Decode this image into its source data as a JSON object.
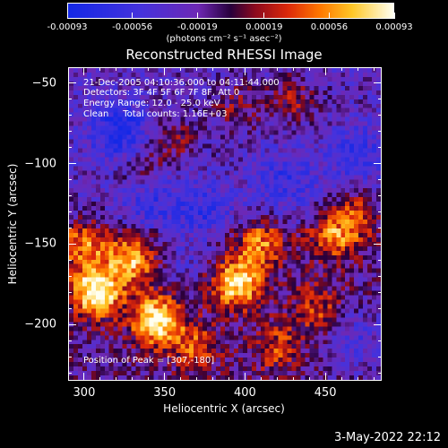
{
  "chart_data": {
    "type": "heatmap",
    "title": "Reconstructed RHESSI Image",
    "xlabel": "Heliocentric X (arcsec)",
    "ylabel": "Heliocentric Y (arcsec)",
    "xlim": [
      290,
      485
    ],
    "ylim": [
      -235,
      -40
    ],
    "xticks": [
      "300",
      "350",
      "400",
      "450"
    ],
    "xtick_values": [
      300,
      350,
      400,
      450
    ],
    "yticks": [
      "-50",
      "-100",
      "-150",
      "-200"
    ],
    "ytick_values": [
      -50,
      -100,
      -150,
      -200
    ],
    "colorbar": {
      "ticks": [
        "-0.00093",
        "-0.00056",
        "-0.00019",
        "0.00019",
        "0.00056",
        "0.00093"
      ],
      "tick_values": [
        -0.00093,
        -0.00056,
        -0.00019,
        0.00019,
        0.00056,
        0.00093
      ],
      "range": [
        -0.00093,
        0.00093
      ],
      "units": "(photons cm⁻² s⁻¹ asec⁻²)"
    },
    "annotations": {
      "time_range": "21-Dec-2005 04:10:36.000 to 04:11:44.000",
      "detectors": "Detectors: 3F 4F 5F 6F 7F 8F, Att 0",
      "energy": "Energy Range: 12.0 - 25.0 keV",
      "clean": "Clean     Total counts: 1.16E+03",
      "peak": "Position of Peak = [307,-180]"
    },
    "peak_position": [
      307,
      -180
    ],
    "total_counts": 1160,
    "energy_range_kev": [
      12.0,
      25.0
    ],
    "bright_regions": [
      {
        "x": 307,
        "y": -180,
        "level": 1.0
      },
      {
        "x": 345,
        "y": -198,
        "level": 0.95
      },
      {
        "x": 395,
        "y": -175,
        "level": 0.85
      },
      {
        "x": 330,
        "y": -160,
        "level": 0.7
      },
      {
        "x": 410,
        "y": -150,
        "level": 0.55
      },
      {
        "x": 300,
        "y": -150,
        "level": 0.55
      },
      {
        "x": 455,
        "y": -145,
        "level": 0.55
      },
      {
        "x": 470,
        "y": -130,
        "level": 0.45
      },
      {
        "x": 445,
        "y": -190,
        "level": 0.4
      },
      {
        "x": 420,
        "y": -215,
        "level": 0.4
      },
      {
        "x": 370,
        "y": -215,
        "level": 0.45
      },
      {
        "x": 335,
        "y": -105,
        "level": 0.35
      },
      {
        "x": 355,
        "y": -85,
        "level": 0.3
      },
      {
        "x": 430,
        "y": -60,
        "level": 0.35
      },
      {
        "x": 395,
        "y": -65,
        "level": 0.3
      }
    ],
    "dark_regions": [
      {
        "x": 322,
        "y": -80,
        "level": -0.8
      },
      {
        "x": 340,
        "y": -120,
        "level": -0.6
      },
      {
        "x": 375,
        "y": -130,
        "level": -0.5
      },
      {
        "x": 425,
        "y": -110,
        "level": -0.5
      },
      {
        "x": 470,
        "y": -95,
        "level": -0.5
      },
      {
        "x": 470,
        "y": -210,
        "level": -0.45
      },
      {
        "x": 360,
        "y": -160,
        "level": -0.3
      }
    ]
  },
  "footer": {
    "timestamp": "3-May-2022 22:12"
  }
}
